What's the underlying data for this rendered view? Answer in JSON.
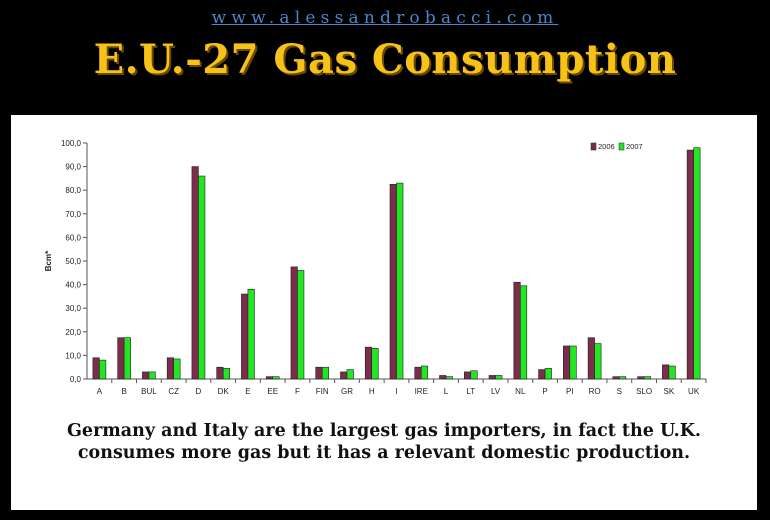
{
  "header": {
    "url": "www.alessandrobacci.com",
    "title": "E.U.-27 Gas Consumption"
  },
  "caption": "Germany and Italy are the largest gas importers, in fact the U.K. consumes more gas but it has a relevant domestic production.",
  "colors": {
    "series_2006": "#7b2d4b",
    "series_2007": "#22e622",
    "page_background": "#000000",
    "title": "#f6c21a",
    "url": "#4a86c8"
  },
  "chart_data": {
    "type": "bar",
    "title": "",
    "xlabel": "",
    "ylabel": "Bcm*",
    "ylim": [
      0,
      100
    ],
    "ytick_step": 10,
    "ytick_labels": [
      "0,0",
      "10,0",
      "20,0",
      "30,0",
      "40,0",
      "50,0",
      "60,0",
      "70,0",
      "80,0",
      "90,0",
      "100,0"
    ],
    "grid": false,
    "legend_position": "top-right",
    "categories": [
      "A",
      "B",
      "BUL",
      "CZ",
      "D",
      "DK",
      "E",
      "EE",
      "F",
      "FIN",
      "GR",
      "H",
      "I",
      "IRE",
      "L",
      "LT",
      "LV",
      "NL",
      "P",
      "PI",
      "RO",
      "S",
      "SLO",
      "SK",
      "UK"
    ],
    "series": [
      {
        "name": "2006",
        "values": [
          9,
          17.5,
          3,
          9,
          90,
          5,
          36,
          1,
          47.5,
          5,
          3,
          13.5,
          82.5,
          5,
          1.5,
          3,
          1.5,
          41,
          4,
          14,
          17.5,
          1,
          1,
          6,
          97
        ]
      },
      {
        "name": "2007",
        "values": [
          8,
          17.5,
          3,
          8.5,
          86,
          4.5,
          38,
          1,
          46,
          5,
          4,
          13,
          83,
          5.5,
          1,
          3.5,
          1.5,
          39.5,
          4.5,
          14,
          15,
          1,
          1,
          5.5,
          98
        ]
      }
    ]
  }
}
